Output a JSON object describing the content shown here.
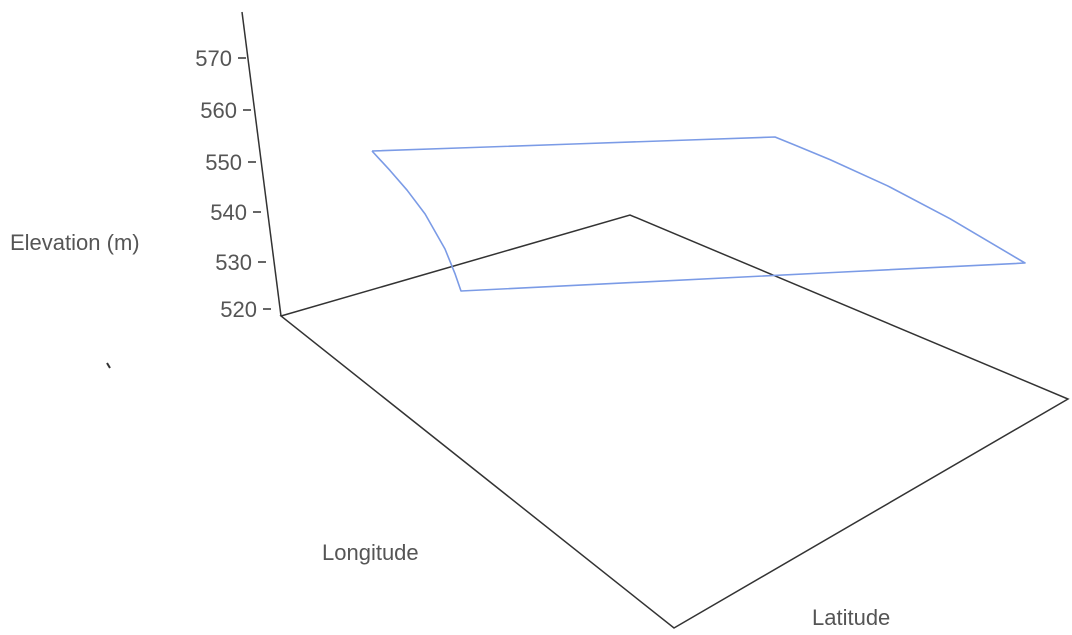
{
  "chart_data": {
    "type": "line",
    "projection": "3d",
    "zlabel": "Elevation (m)",
    "xlabel": "Longitude",
    "ylabel": "Latitude",
    "zticks": [
      "570",
      "560",
      "550",
      "540",
      "530",
      "520"
    ],
    "zlim": [
      520,
      570
    ],
    "grid": false,
    "series": [
      {
        "color": "#7b9be6",
        "points": [
          {
            "lon": 0.0,
            "lat": 0.0,
            "z": 552
          },
          {
            "lon": 0.25,
            "lat": 0.0,
            "z": 552
          },
          {
            "lon": 0.5,
            "lat": 0.0,
            "z": 552
          },
          {
            "lon": 0.75,
            "lat": 0.0,
            "z": 552
          },
          {
            "lon": 1.0,
            "lat": 0.0,
            "z": 552
          },
          {
            "lon": 1.0,
            "lat": 0.08,
            "z": 552
          },
          {
            "lon": 1.0,
            "lat": 0.22,
            "z": 552
          },
          {
            "lon": 1.0,
            "lat": 0.45,
            "z": 552
          },
          {
            "lon": 1.0,
            "lat": 0.7,
            "z": 552
          },
          {
            "lon": 1.0,
            "lat": 1.0,
            "z": 552
          },
          {
            "lon": 0.66,
            "lat": 1.0,
            "z": 552
          },
          {
            "lon": 0.33,
            "lat": 1.0,
            "z": 552
          },
          {
            "lon": 0.0,
            "lat": 1.0,
            "z": 552
          },
          {
            "lon": 0.0,
            "lat": 0.88,
            "z": 552
          },
          {
            "lon": 0.0,
            "lat": 0.7,
            "z": 552
          },
          {
            "lon": 0.0,
            "lat": 0.45,
            "z": 552
          },
          {
            "lon": 0.0,
            "lat": 0.28,
            "z": 552
          },
          {
            "lon": 0.0,
            "lat": 0.14,
            "z": 552
          },
          {
            "lon": 0.0,
            "lat": 0.06,
            "z": 552
          },
          {
            "lon": 0.0,
            "lat": 0.0,
            "z": 552
          }
        ]
      }
    ]
  },
  "colors": {
    "frame": "#333333",
    "text": "#555555",
    "series": "#7b9be6"
  }
}
